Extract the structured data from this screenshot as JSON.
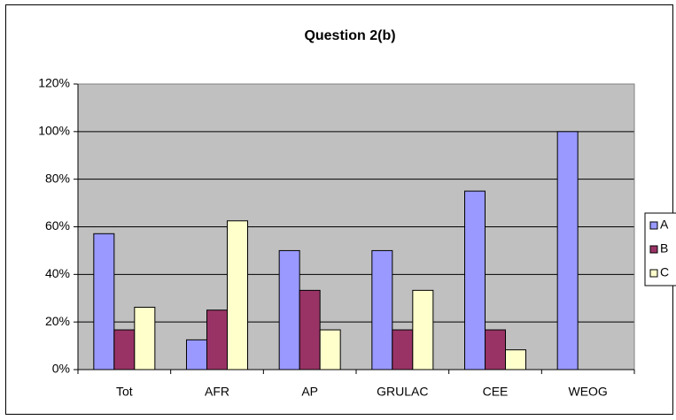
{
  "chart_data": {
    "type": "bar",
    "title": "Question 2(b)",
    "categories": [
      "Tot",
      "AFR",
      "AP",
      "GRULAC",
      "CEE",
      "WEOG"
    ],
    "series": [
      {
        "name": "A",
        "color": "#9999ff",
        "values": [
          57.1,
          12.5,
          50,
          50,
          75,
          100
        ]
      },
      {
        "name": "B",
        "color": "#993366",
        "values": [
          16.7,
          25,
          33.3,
          16.7,
          16.7,
          0
        ]
      },
      {
        "name": "C",
        "color": "#ffffcc",
        "values": [
          26.2,
          62.5,
          16.7,
          33.3,
          8.3,
          0
        ]
      }
    ],
    "ylim": [
      0,
      120
    ],
    "yticks": [
      {
        "value": 0,
        "label": "0%"
      },
      {
        "value": 20,
        "label": "20%"
      },
      {
        "value": 40,
        "label": "40%"
      },
      {
        "value": 60,
        "label": "60%"
      },
      {
        "value": 80,
        "label": "80%"
      },
      {
        "value": 100,
        "label": "100%"
      },
      {
        "value": 120,
        "label": "120%"
      }
    ],
    "grid": true,
    "legend": "right"
  }
}
